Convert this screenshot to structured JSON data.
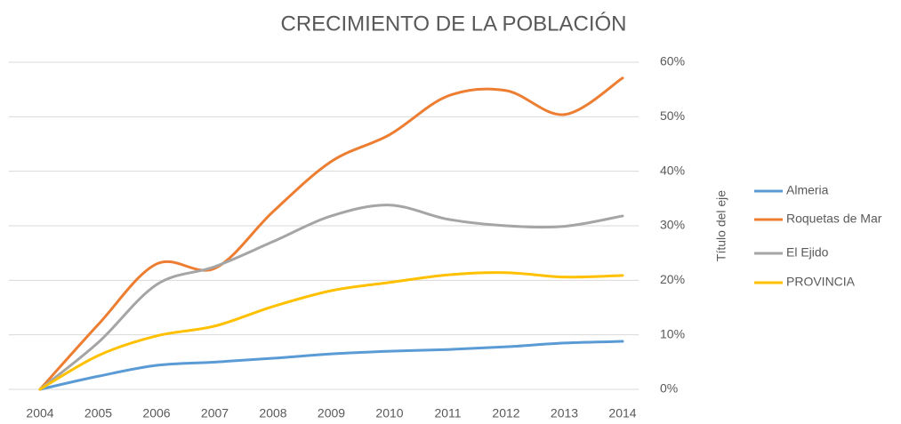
{
  "chart_data": {
    "type": "line",
    "title": "CRECIMIENTO DE LA POBLACIÓN",
    "y_label": "Título del eje",
    "categories": [
      "2004",
      "2005",
      "2006",
      "2007",
      "2008",
      "2009",
      "2010",
      "2011",
      "2012",
      "2013",
      "2014"
    ],
    "series": [
      {
        "name": "Almeria",
        "color": "#5b9bd5",
        "values": [
          0,
          2.4,
          4.4,
          5.0,
          5.7,
          6.5,
          7.0,
          7.3,
          7.8,
          8.5,
          8.8
        ]
      },
      {
        "name": "Roquetas de Mar",
        "color": "#ed7d31",
        "values": [
          0,
          11.9,
          23.0,
          22.2,
          32.6,
          41.8,
          46.7,
          53.8,
          54.8,
          50.4,
          57.1
        ]
      },
      {
        "name": "El Ejido",
        "color": "#a5a5a5",
        "values": [
          0,
          8.6,
          19.2,
          22.5,
          27.1,
          31.8,
          33.8,
          31.2,
          30.0,
          29.9,
          31.8
        ]
      },
      {
        "name": "PROVINCIA",
        "color": "#ffc000",
        "values": [
          0,
          6.2,
          9.8,
          11.6,
          15.2,
          18.1,
          19.6,
          21.0,
          21.4,
          20.6,
          20.9
        ]
      }
    ],
    "ylim": [
      0,
      60
    ],
    "yticks": [
      {
        "value": 0,
        "label": "0%"
      },
      {
        "value": 10,
        "label": "10%"
      },
      {
        "value": 20,
        "label": "20%"
      },
      {
        "value": 30,
        "label": "30%"
      },
      {
        "value": 40,
        "label": "40%"
      },
      {
        "value": 50,
        "label": "50%"
      },
      {
        "value": 60,
        "label": "60%"
      }
    ],
    "grid": true,
    "legend": "right"
  }
}
